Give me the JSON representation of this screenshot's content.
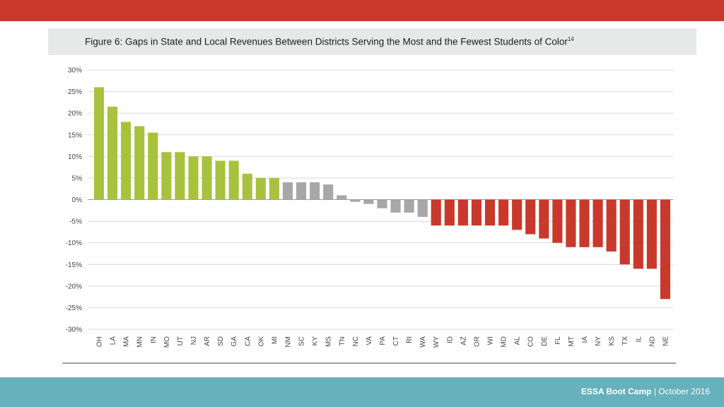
{
  "title": "Figure 6: Gaps in State and Local Revenues Between Districts Serving the Most and the Fewest Students of Color",
  "title_sup": "14",
  "footer": {
    "brand": "ESSA Boot Camp",
    "separator": "|",
    "date": "October 2016"
  },
  "colors": {
    "top_bar": "#c8392b",
    "bottom_bar": "#66b1bb",
    "positive": "#a9c23e",
    "neutral": "#a7a7a7",
    "negative": "#c8392b"
  },
  "chart_data": {
    "type": "bar",
    "title": "Figure 6: Gaps in State and Local Revenues Between Districts Serving the Most and the Fewest Students of Color",
    "xlabel": "",
    "ylabel": "",
    "ylim": [
      -30,
      30
    ],
    "yticks": [
      30,
      25,
      20,
      15,
      10,
      5,
      0,
      -5,
      -10,
      -15,
      -20,
      -25,
      -30
    ],
    "ytick_labels": [
      "30%",
      "25%",
      "20%",
      "15%",
      "10%",
      "5%",
      "0%",
      "-5%",
      "-10%",
      "-15%",
      "-20%",
      "-25%",
      "-30%"
    ],
    "grid": true,
    "categories": [
      "OH",
      "LA",
      "MA",
      "MN",
      "IN",
      "MO",
      "UT",
      "NJ",
      "AR",
      "SD",
      "GA",
      "CA",
      "OK",
      "MI",
      "NM",
      "SC",
      "KY",
      "MS",
      "TN",
      "NC",
      "VA",
      "PA",
      "CT",
      "RI",
      "WA",
      "WY",
      "ID",
      "AZ",
      "OR",
      "WI",
      "MD",
      "AL",
      "CO",
      "DE",
      "FL",
      "MT",
      "IA",
      "NY",
      "KS",
      "TX",
      "IL",
      "ND",
      "NE"
    ],
    "values": [
      26,
      21.5,
      18,
      17,
      15.5,
      11,
      11,
      10,
      10,
      9,
      9,
      6,
      5,
      5,
      4,
      4,
      4,
      3.5,
      1,
      -0.5,
      -1,
      -2,
      -3,
      -3,
      -4,
      -6,
      -6,
      -6,
      -6,
      -6,
      -6,
      -7,
      -8,
      -9,
      -10,
      -11,
      -11,
      -11,
      -12,
      -15,
      -16,
      -16,
      -23
    ],
    "bar_groups": [
      "positive",
      "positive",
      "positive",
      "positive",
      "positive",
      "positive",
      "positive",
      "positive",
      "positive",
      "positive",
      "positive",
      "positive",
      "positive",
      "positive",
      "neutral",
      "neutral",
      "neutral",
      "neutral",
      "neutral",
      "neutral",
      "neutral",
      "neutral",
      "neutral",
      "neutral",
      "neutral",
      "negative",
      "negative",
      "negative",
      "negative",
      "negative",
      "negative",
      "negative",
      "negative",
      "negative",
      "negative",
      "negative",
      "negative",
      "negative",
      "negative",
      "negative",
      "negative",
      "negative",
      "negative"
    ]
  }
}
